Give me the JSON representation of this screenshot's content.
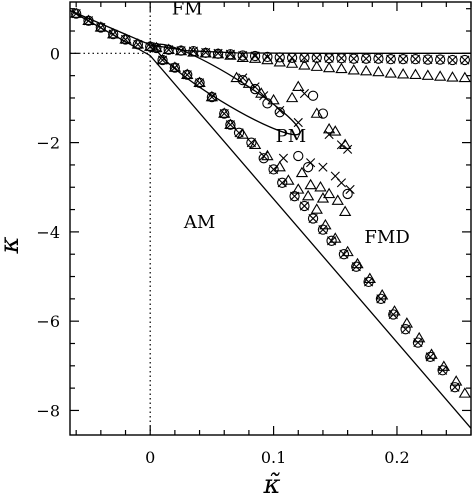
{
  "chart_data": {
    "type": "scatter",
    "xlabel": "κ̃",
    "ylabel": "κ",
    "xlim": [
      -0.065,
      0.26
    ],
    "ylim": [
      -8.55,
      1.15
    ],
    "x_ticks": [
      {
        "value": 0,
        "label": "0"
      },
      {
        "value": 0.1,
        "label": "0.1"
      },
      {
        "value": 0.2,
        "label": "0.2"
      }
    ],
    "y_ticks": [
      {
        "value": 0,
        "label": "0"
      },
      {
        "value": -2,
        "label": "−2"
      },
      {
        "value": -4,
        "label": "−4"
      },
      {
        "value": -6,
        "label": "−6"
      },
      {
        "value": -8,
        "label": "−8"
      }
    ],
    "grid": false,
    "reference_lines": [
      {
        "orientation": "horizontal",
        "value": 0,
        "style": "dotted"
      },
      {
        "orientation": "vertical",
        "value": 0,
        "style": "dotted"
      }
    ],
    "region_labels": [
      {
        "text": "FM",
        "x": 0.03,
        "y": 1.0
      },
      {
        "text": "PM",
        "x": 0.114,
        "y": -1.85
      },
      {
        "text": "AM",
        "x": 0.04,
        "y": -3.78
      },
      {
        "text": "FMD",
        "x": 0.192,
        "y": -4.12
      }
    ],
    "lines": [
      {
        "kind": "upper_boundary",
        "points": [
          [
            -0.065,
            0.96
          ],
          [
            0.0,
            0.19
          ],
          [
            0.03,
            0.06
          ],
          [
            0.07,
            0.01
          ],
          [
            0.13,
            0.0
          ],
          [
            0.26,
            0.0
          ]
        ]
      },
      {
        "kind": "lower_boundary",
        "points": [
          [
            -0.065,
            0.96
          ],
          [
            0.0,
            -0.05
          ],
          [
            0.26,
            -8.4
          ]
        ]
      },
      {
        "kind": "ellipse",
        "center": [
          0.063,
          -0.81
        ],
        "major_radius": 0.058,
        "minor_radius": 0.006,
        "slope": -16.9
      }
    ],
    "series": [
      {
        "marker": "circle",
        "points": [
          [
            -0.06,
            0.89
          ],
          [
            -0.05,
            0.73
          ],
          [
            -0.04,
            0.58
          ],
          [
            -0.03,
            0.43
          ],
          [
            -0.02,
            0.31
          ],
          [
            -0.01,
            0.2
          ],
          [
            0.0,
            0.15
          ],
          [
            0.005,
            0.12
          ],
          [
            0.015,
            0.08
          ],
          [
            0.025,
            0.06
          ],
          [
            0.035,
            0.05
          ],
          [
            0.045,
            0.01
          ],
          [
            0.055,
            -0.01
          ],
          [
            0.065,
            -0.02
          ],
          [
            0.075,
            -0.05
          ],
          [
            0.085,
            -0.06
          ],
          [
            0.095,
            -0.08
          ],
          [
            0.105,
            -0.09
          ],
          [
            0.115,
            -0.1
          ],
          [
            0.125,
            -0.1
          ],
          [
            0.135,
            -0.1
          ],
          [
            0.145,
            -0.11
          ],
          [
            0.155,
            -0.11
          ],
          [
            0.165,
            -0.12
          ],
          [
            0.175,
            -0.12
          ],
          [
            0.185,
            -0.12
          ],
          [
            0.195,
            -0.13
          ],
          [
            0.205,
            -0.13
          ],
          [
            0.215,
            -0.13
          ],
          [
            0.225,
            -0.14
          ],
          [
            0.235,
            -0.14
          ],
          [
            0.245,
            -0.15
          ],
          [
            0.255,
            -0.15
          ],
          [
            0.01,
            -0.15
          ],
          [
            0.02,
            -0.32
          ],
          [
            0.03,
            -0.48
          ],
          [
            0.04,
            -0.66
          ],
          [
            0.05,
            -0.98
          ],
          [
            0.06,
            -1.35
          ],
          [
            0.065,
            -1.6
          ],
          [
            0.072,
            -1.78
          ],
          [
            0.082,
            -2.0
          ],
          [
            0.092,
            -2.35
          ],
          [
            0.1,
            -2.6
          ],
          [
            0.107,
            -2.9
          ],
          [
            0.117,
            -3.2
          ],
          [
            0.125,
            -3.42
          ],
          [
            0.132,
            -3.7
          ],
          [
            0.14,
            -3.95
          ],
          [
            0.147,
            -4.2
          ],
          [
            0.157,
            -4.5
          ],
          [
            0.167,
            -4.78
          ],
          [
            0.177,
            -5.12
          ],
          [
            0.187,
            -5.5
          ],
          [
            0.197,
            -5.85
          ],
          [
            0.207,
            -6.18
          ],
          [
            0.217,
            -6.48
          ],
          [
            0.227,
            -6.8
          ],
          [
            0.237,
            -7.1
          ],
          [
            0.247,
            -7.48
          ],
          [
            0.075,
            -0.6
          ],
          [
            0.085,
            -0.8
          ],
          [
            0.095,
            -1.12
          ],
          [
            0.105,
            -1.32
          ],
          [
            0.12,
            -2.3
          ],
          [
            0.128,
            -2.55
          ],
          [
            0.132,
            -0.95
          ],
          [
            0.14,
            -1.35
          ],
          [
            0.16,
            -3.15
          ]
        ]
      },
      {
        "marker": "cross",
        "points": [
          [
            -0.06,
            0.89
          ],
          [
            -0.05,
            0.73
          ],
          [
            -0.04,
            0.58
          ],
          [
            -0.03,
            0.43
          ],
          [
            -0.02,
            0.31
          ],
          [
            -0.01,
            0.2
          ],
          [
            0.0,
            0.15
          ],
          [
            0.005,
            0.12
          ],
          [
            0.015,
            0.08
          ],
          [
            0.025,
            0.06
          ],
          [
            0.035,
            0.05
          ],
          [
            0.045,
            0.02
          ],
          [
            0.055,
            0.0
          ],
          [
            0.065,
            -0.02
          ],
          [
            0.075,
            -0.05
          ],
          [
            0.085,
            -0.06
          ],
          [
            0.095,
            -0.08
          ],
          [
            0.105,
            -0.09
          ],
          [
            0.115,
            -0.1
          ],
          [
            0.125,
            -0.1
          ],
          [
            0.135,
            -0.1
          ],
          [
            0.145,
            -0.11
          ],
          [
            0.155,
            -0.11
          ],
          [
            0.165,
            -0.12
          ],
          [
            0.175,
            -0.12
          ],
          [
            0.185,
            -0.12
          ],
          [
            0.195,
            -0.13
          ],
          [
            0.205,
            -0.13
          ],
          [
            0.215,
            -0.13
          ],
          [
            0.225,
            -0.14
          ],
          [
            0.235,
            -0.14
          ],
          [
            0.245,
            -0.15
          ],
          [
            0.255,
            -0.15
          ],
          [
            0.01,
            -0.15
          ],
          [
            0.02,
            -0.32
          ],
          [
            0.03,
            -0.48
          ],
          [
            0.04,
            -0.66
          ],
          [
            0.05,
            -0.98
          ],
          [
            0.06,
            -1.35
          ],
          [
            0.065,
            -1.6
          ],
          [
            0.072,
            -1.78
          ],
          [
            0.082,
            -2.0
          ],
          [
            0.092,
            -2.3
          ],
          [
            0.1,
            -2.6
          ],
          [
            0.107,
            -2.9
          ],
          [
            0.117,
            -3.2
          ],
          [
            0.125,
            -3.42
          ],
          [
            0.132,
            -3.7
          ],
          [
            0.14,
            -3.95
          ],
          [
            0.147,
            -4.2
          ],
          [
            0.157,
            -4.5
          ],
          [
            0.167,
            -4.78
          ],
          [
            0.177,
            -5.12
          ],
          [
            0.187,
            -5.5
          ],
          [
            0.197,
            -5.85
          ],
          [
            0.207,
            -6.18
          ],
          [
            0.217,
            -6.48
          ],
          [
            0.227,
            -6.8
          ],
          [
            0.237,
            -7.1
          ],
          [
            0.247,
            -7.48
          ],
          [
            0.075,
            -0.55
          ],
          [
            0.085,
            -0.75
          ],
          [
            0.092,
            -0.95
          ],
          [
            0.105,
            -1.28
          ],
          [
            0.12,
            -1.55
          ],
          [
            0.125,
            -0.9
          ],
          [
            0.145,
            -1.82
          ],
          [
            0.155,
            -2.05
          ],
          [
            0.16,
            -2.15
          ],
          [
            0.108,
            -2.35
          ],
          [
            0.13,
            -2.45
          ],
          [
            0.14,
            -2.55
          ],
          [
            0.15,
            -2.75
          ],
          [
            0.155,
            -2.9
          ],
          [
            0.162,
            -3.05
          ]
        ]
      },
      {
        "marker": "triangle",
        "points": [
          [
            -0.06,
            0.89
          ],
          [
            -0.05,
            0.73
          ],
          [
            -0.04,
            0.58
          ],
          [
            -0.03,
            0.43
          ],
          [
            -0.02,
            0.31
          ],
          [
            -0.01,
            0.2
          ],
          [
            0.0,
            0.15
          ],
          [
            0.005,
            0.12
          ],
          [
            0.015,
            0.08
          ],
          [
            0.025,
            0.05
          ],
          [
            0.035,
            0.02
          ],
          [
            0.045,
            0.0
          ],
          [
            0.055,
            -0.02
          ],
          [
            0.065,
            -0.05
          ],
          [
            0.075,
            -0.1
          ],
          [
            0.085,
            -0.12
          ],
          [
            0.095,
            -0.15
          ],
          [
            0.105,
            -0.2
          ],
          [
            0.115,
            -0.23
          ],
          [
            0.125,
            -0.27
          ],
          [
            0.135,
            -0.3
          ],
          [
            0.145,
            -0.33
          ],
          [
            0.155,
            -0.35
          ],
          [
            0.165,
            -0.38
          ],
          [
            0.175,
            -0.4
          ],
          [
            0.185,
            -0.42
          ],
          [
            0.195,
            -0.45
          ],
          [
            0.205,
            -0.47
          ],
          [
            0.215,
            -0.48
          ],
          [
            0.225,
            -0.5
          ],
          [
            0.235,
            -0.52
          ],
          [
            0.245,
            -0.54
          ],
          [
            0.255,
            -0.55
          ],
          [
            0.01,
            -0.15
          ],
          [
            0.02,
            -0.32
          ],
          [
            0.03,
            -0.48
          ],
          [
            0.04,
            -0.66
          ],
          [
            0.05,
            -0.98
          ],
          [
            0.06,
            -1.35
          ],
          [
            0.065,
            -1.6
          ],
          [
            0.075,
            -1.82
          ],
          [
            0.085,
            -2.05
          ],
          [
            0.095,
            -2.3
          ],
          [
            0.105,
            -2.55
          ],
          [
            0.112,
            -2.85
          ],
          [
            0.12,
            -3.05
          ],
          [
            0.128,
            -3.2
          ],
          [
            0.135,
            -3.5
          ],
          [
            0.142,
            -3.85
          ],
          [
            0.15,
            -4.15
          ],
          [
            0.16,
            -4.45
          ],
          [
            0.168,
            -4.72
          ],
          [
            0.178,
            -5.05
          ],
          [
            0.188,
            -5.42
          ],
          [
            0.198,
            -5.78
          ],
          [
            0.208,
            -6.05
          ],
          [
            0.218,
            -6.38
          ],
          [
            0.228,
            -6.75
          ],
          [
            0.238,
            -7.02
          ],
          [
            0.248,
            -7.35
          ],
          [
            0.255,
            -7.62
          ],
          [
            0.07,
            -0.55
          ],
          [
            0.08,
            -0.68
          ],
          [
            0.09,
            -0.9
          ],
          [
            0.1,
            -1.05
          ],
          [
            0.115,
            -1.0
          ],
          [
            0.12,
            -0.75
          ],
          [
            0.135,
            -1.35
          ],
          [
            0.145,
            -1.7
          ],
          [
            0.15,
            -1.75
          ],
          [
            0.158,
            -2.05
          ],
          [
            0.123,
            -2.68
          ],
          [
            0.13,
            -2.95
          ],
          [
            0.138,
            -3.0
          ],
          [
            0.145,
            -3.15
          ],
          [
            0.152,
            -3.3
          ],
          [
            0.158,
            -3.55
          ],
          [
            0.14,
            -3.25
          ]
        ]
      }
    ]
  }
}
